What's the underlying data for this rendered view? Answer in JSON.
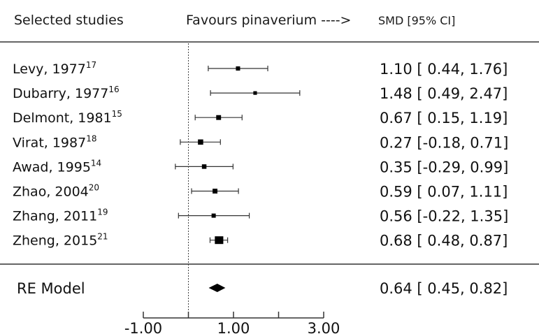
{
  "chart_data": {
    "type": "forest",
    "headers": {
      "studies": "Selected studies",
      "direction": "Favours pinaverium ---->",
      "effect": "SMD [95% CI]"
    },
    "studies": [
      {
        "author": "Levy, 1977",
        "ref": "17",
        "smd": 1.1,
        "lower": 0.44,
        "upper": 1.76,
        "ci_text": "1.10 [ 0.44, 1.76]",
        "weight": 1.0
      },
      {
        "author": "Dubarry, 1977",
        "ref": "16",
        "smd": 1.48,
        "lower": 0.49,
        "upper": 2.47,
        "ci_text": "1.48 [ 0.49, 2.47]",
        "weight": 0.7
      },
      {
        "author": "Delmont, 1981",
        "ref": "15",
        "smd": 0.67,
        "lower": 0.15,
        "upper": 1.19,
        "ci_text": "0.67 [ 0.15, 1.19]",
        "weight": 1.4
      },
      {
        "author": "Virat, 1987",
        "ref": "18",
        "smd": 0.27,
        "lower": -0.18,
        "upper": 0.71,
        "ci_text": "0.27 [-0.18, 0.71]",
        "weight": 1.7
      },
      {
        "author": "Awad, 1995",
        "ref": "14",
        "smd": 0.35,
        "lower": -0.29,
        "upper": 0.99,
        "ci_text": "0.35 [-0.29, 0.99]",
        "weight": 1.2
      },
      {
        "author": "Zhao, 2004",
        "ref": "20",
        "smd": 0.59,
        "lower": 0.07,
        "upper": 1.11,
        "ci_text": "0.59 [ 0.07, 1.11]",
        "weight": 1.4
      },
      {
        "author": "Zhang, 2011",
        "ref": "19",
        "smd": 0.56,
        "lower": -0.22,
        "upper": 1.35,
        "ci_text": "0.56 [-0.22, 1.35]",
        "weight": 1.0
      },
      {
        "author": "Zheng, 2015",
        "ref": "21",
        "smd": 0.68,
        "lower": 0.48,
        "upper": 0.87,
        "ci_text": "0.68 [ 0.48, 0.87]",
        "weight": 4.0
      }
    ],
    "summary": {
      "label": "RE Model",
      "smd": 0.64,
      "lower": 0.45,
      "upper": 0.82,
      "ci_text": "0.64 [ 0.45, 0.82]"
    },
    "null_line": 0,
    "xlim": [
      -1,
      3
    ],
    "xticks": [
      -1,
      0,
      1,
      2,
      3
    ],
    "xtick_labels": [
      "-1.00",
      "",
      "1.00",
      "",
      "3.00"
    ]
  }
}
